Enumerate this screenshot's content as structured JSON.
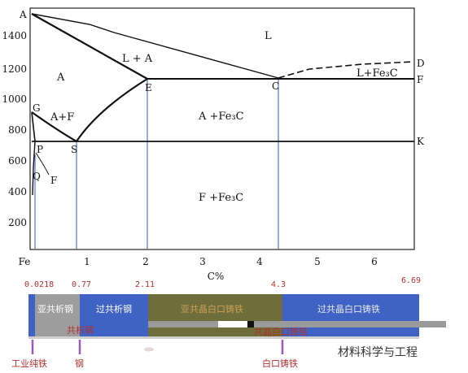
{
  "diagram": {
    "y_ticks": [
      "1400",
      "1200",
      "1000",
      "800",
      "600",
      "400",
      "200"
    ],
    "x_ticks": [
      "Fe",
      "1",
      "2",
      "3",
      "4",
      "5",
      "6"
    ],
    "x_axis_label": "C%",
    "points": {
      "A": "A",
      "D": "D",
      "E": "E",
      "C": "C",
      "F": "F",
      "G": "G",
      "P": "P",
      "S": "S",
      "K": "K",
      "Q": "Q",
      "F2": "F"
    },
    "regions": {
      "L": "L",
      "L_plus_A": "L + A",
      "A": "A",
      "L_plus_Fe3C": "L+Fe₃C",
      "A_plus_F": "A+F",
      "A_plus_Fe3C": "A +Fe₃C",
      "F_plus_Fe3C": "F +Fe₃C"
    }
  },
  "composition_labels": [
    "0.0218",
    "0.77",
    "2.11",
    "4.3",
    "6.69"
  ],
  "classification_bar": {
    "segments": [
      {
        "label": "亚共析钢",
        "color": "#9d9d9d",
        "text_color": "#ffffff"
      },
      {
        "label": "过共析钢",
        "color": "#3f63c4",
        "text_color": "#ffffff"
      },
      {
        "label": "亚共晶白口铸铁",
        "color": "#6f6d3a",
        "text_color": "#c9a15a"
      },
      {
        "label": "过共晶白口铸铁",
        "color": "#3f63c4",
        "text_color": "#e8e8e8"
      }
    ],
    "eutectoid_label": "共析钢",
    "eutectic_label": "共晶白口铸铁"
  },
  "material_labels": [
    "工业纯铁",
    "钢",
    "白口铸铁"
  ],
  "watermark": "材料科学与工程",
  "colors": {
    "line": "#111111",
    "blue_line": "#2a5db0",
    "marker": "#9b59b6",
    "label_red": "#b0322e"
  }
}
